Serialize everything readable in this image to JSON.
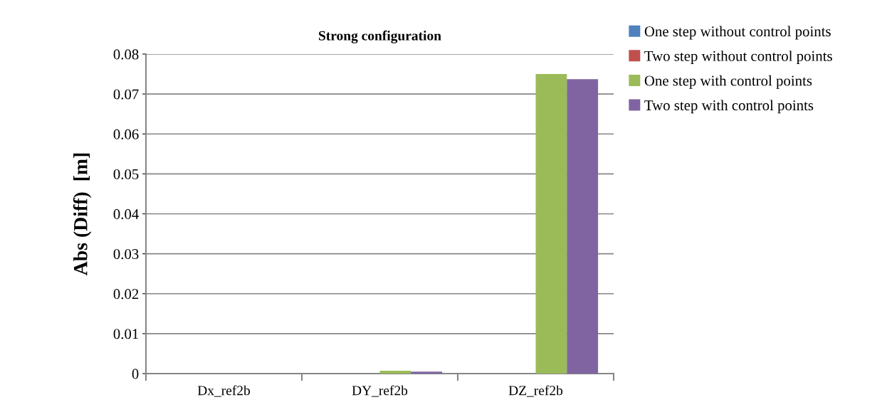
{
  "chart_data": {
    "type": "bar",
    "title": "Strong configuration",
    "ylabel": "Abs (Diff)  [m]",
    "categories": [
      "Dx_ref2b",
      "DY_ref2b",
      "DZ_ref2b"
    ],
    "series": [
      {
        "name": "One step without control points",
        "color": "#4f81bd",
        "values": [
          null,
          null,
          0
        ]
      },
      {
        "name": "Two step without control points",
        "color": "#c0504d",
        "values": [
          0,
          null,
          0
        ]
      },
      {
        "name": "One step with control points",
        "color": "#9bbb59",
        "values": [
          0,
          0.0007,
          0.075
        ]
      },
      {
        "name": "Two step with control points",
        "color": "#8064a2",
        "values": [
          0,
          0.0005,
          0.0737
        ]
      }
    ],
    "ylim": [
      0,
      0.08
    ],
    "yticks": [
      0,
      0.01,
      0.02,
      0.03,
      0.04,
      0.05,
      0.06,
      0.07,
      0.08
    ],
    "grid": "y",
    "legend": "right"
  }
}
